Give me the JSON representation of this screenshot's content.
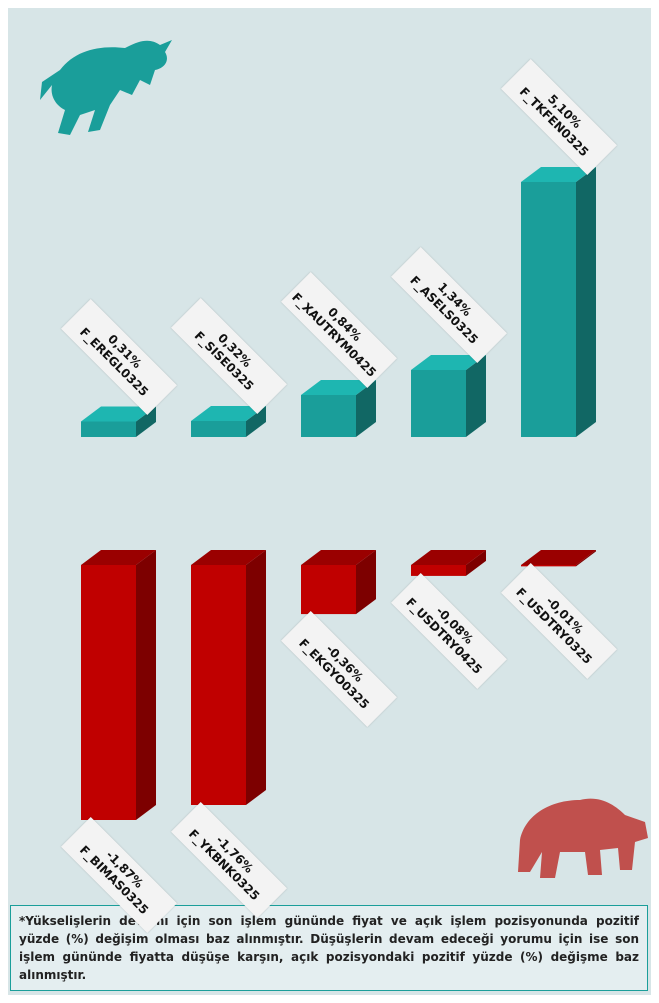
{
  "chart_data": [
    {
      "type": "bar",
      "categories": [
        "F_EREGL0325",
        "F_SISE0325",
        "F_XAUTRYM0425",
        "F_ASELS0325",
        "F_TKFEN0325"
      ],
      "values": [
        0.31,
        0.32,
        0.84,
        1.34,
        5.1
      ],
      "value_labels": [
        "0,31%",
        "0,32%",
        "0,84%",
        "1,34%",
        "5,10%"
      ],
      "color": "#1a9e9a"
    },
    {
      "type": "bar",
      "categories": [
        "F_BIMAS0325",
        "F_YKBNK0325",
        "F_EKGYO0325",
        "F_USDTRY0425",
        "F_USDTRY0325"
      ],
      "values": [
        -1.87,
        -1.76,
        -0.36,
        -0.08,
        -0.01
      ],
      "value_labels": [
        "-1,87%",
        "-1,76%",
        "-0,36%",
        "-0,08%",
        "-0,01%"
      ],
      "color": "#c00000"
    }
  ],
  "note": "*Yükselişlerin devamı için son işlem gününde fiyat ve açık işlem pozisyonunda pozitif yüzde (%) değişim olması baz alınmıştır. Düşüşlerin devam edeceği yorumu için ise son işlem gününde fiyatta düşüşe karşın, açık pozisyondaki pozitif yüzde (%) değişme baz alınmıştır."
}
